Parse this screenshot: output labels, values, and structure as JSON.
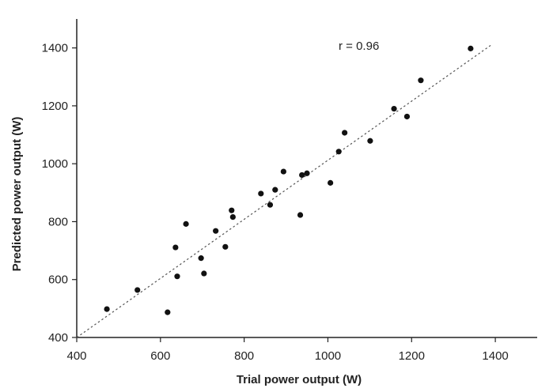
{
  "chart_data": {
    "type": "scatter",
    "title": "",
    "xlabel": "Trial power output (W)",
    "ylabel": "Predicted power output (W)",
    "xlim": [
      400,
      1500
    ],
    "ylim": [
      400,
      1500
    ],
    "xticks": [
      400,
      600,
      800,
      1000,
      1200,
      1400
    ],
    "yticks": [
      400,
      600,
      800,
      1000,
      1200,
      1400
    ],
    "xtick_labels": [
      "400",
      "600",
      "800",
      "1000",
      "1200",
      "1400"
    ],
    "ytick_labels": [
      "400",
      "600",
      "800",
      "1000",
      "1200",
      "1400"
    ],
    "grid": false,
    "annotation": "r = 0.96",
    "trendline": {
      "style": "dotted",
      "from": [
        400,
        400
      ],
      "to": [
        1390,
        1410
      ]
    },
    "points": [
      {
        "x": 472,
        "y": 498
      },
      {
        "x": 545,
        "y": 564
      },
      {
        "x": 617,
        "y": 487
      },
      {
        "x": 636,
        "y": 711
      },
      {
        "x": 640,
        "y": 611
      },
      {
        "x": 661,
        "y": 792
      },
      {
        "x": 697,
        "y": 674
      },
      {
        "x": 704,
        "y": 621
      },
      {
        "x": 732,
        "y": 768
      },
      {
        "x": 755,
        "y": 713
      },
      {
        "x": 770,
        "y": 839
      },
      {
        "x": 773,
        "y": 816
      },
      {
        "x": 840,
        "y": 897
      },
      {
        "x": 862,
        "y": 858
      },
      {
        "x": 874,
        "y": 910
      },
      {
        "x": 894,
        "y": 973
      },
      {
        "x": 934,
        "y": 823
      },
      {
        "x": 938,
        "y": 961
      },
      {
        "x": 950,
        "y": 967
      },
      {
        "x": 1006,
        "y": 934
      },
      {
        "x": 1026,
        "y": 1042
      },
      {
        "x": 1040,
        "y": 1107
      },
      {
        "x": 1101,
        "y": 1079
      },
      {
        "x": 1158,
        "y": 1190
      },
      {
        "x": 1189,
        "y": 1163
      },
      {
        "x": 1222,
        "y": 1288
      },
      {
        "x": 1341,
        "y": 1398
      }
    ]
  }
}
